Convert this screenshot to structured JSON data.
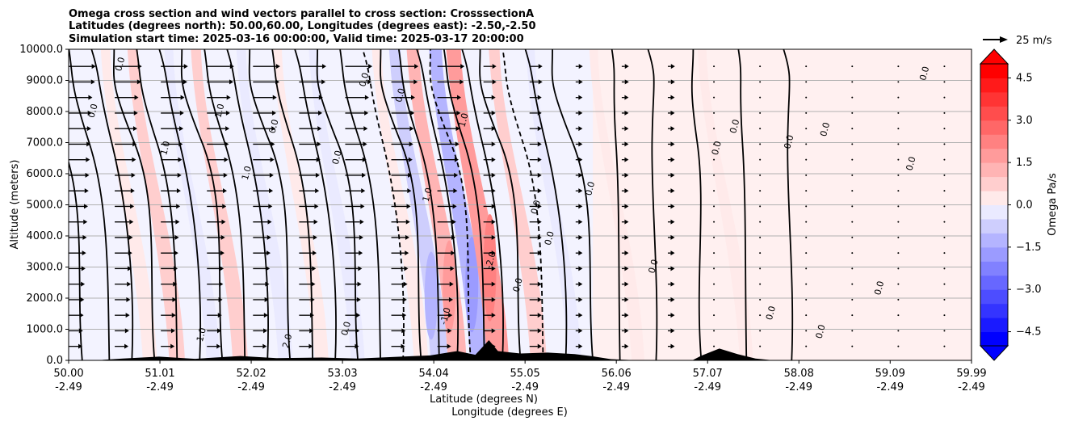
{
  "chart_data": {
    "type": "heatmap",
    "title_lines": [
      "Omega cross section and wind vectors parallel to cross section: CrosssectionA",
      "Latitudes (degrees north): 50.00,60.00, Longitudes (degrees east): -2.50,-2.50",
      "Simulation start time: 2025-03-16 00:00:00, Valid time: 2025-03-17 20:00:00"
    ],
    "ylabel": "Altitude (meters)",
    "xlabel_line1": "Latitude (degrees N)",
    "xlabel_line2": "Longitude (degrees E)",
    "ylim": [
      0,
      10000
    ],
    "xlim": [
      50.0,
      59.99
    ],
    "y_ticks": [
      "0.0",
      "1000.0",
      "2000.0",
      "3000.0",
      "4000.0",
      "5000.0",
      "6000.0",
      "7000.0",
      "8000.0",
      "9000.0",
      "10000.0"
    ],
    "y_tick_values": [
      0,
      1000,
      2000,
      3000,
      4000,
      5000,
      6000,
      7000,
      8000,
      9000,
      10000
    ],
    "x_ticks_lat": [
      "50.00",
      "51.01",
      "52.02",
      "53.03",
      "54.04",
      "55.05",
      "56.06",
      "57.07",
      "58.08",
      "59.09",
      "59.99"
    ],
    "x_ticks_lon": [
      "-2.49",
      "-2.49",
      "-2.49",
      "-2.49",
      "-2.49",
      "-2.49",
      "-2.49",
      "-2.49",
      "-2.49",
      "-2.49",
      "-2.49"
    ],
    "x_tick_values": [
      50.0,
      51.01,
      52.02,
      53.03,
      54.04,
      55.05,
      56.06,
      57.07,
      58.08,
      59.09,
      59.99
    ],
    "grid": "horizontal",
    "colorbar": {
      "label": "Omega Pa/s",
      "range": [
        -5,
        5
      ],
      "levels": [
        -5,
        -4.5,
        -4,
        -3.5,
        -3,
        -2.5,
        -2,
        -1.5,
        -1,
        -0.5,
        0,
        0.5,
        1,
        1.5,
        2,
        2.5,
        3,
        3.5,
        4,
        4.5,
        5
      ],
      "tick_labels": [
        "−4.5",
        "−3.0",
        "−1.5",
        "0.0",
        "1.5",
        "3.0",
        "4.5"
      ],
      "tick_values": [
        -4.5,
        -3.0,
        -1.5,
        0.0,
        1.5,
        3.0,
        4.5
      ],
      "colors": [
        "#0000ff",
        "#1a1aff",
        "#3434ff",
        "#4d4dff",
        "#6767ff",
        "#8181ff",
        "#9b9bff",
        "#b4b4ff",
        "#cecefd",
        "#eaeaff",
        "#ffeaea",
        "#ffcece",
        "#ffb4b4",
        "#ff9b9b",
        "#ff8181",
        "#ff6767",
        "#ff4d4d",
        "#ff3434",
        "#ff1a1a",
        "#ff0000"
      ],
      "extend": "both"
    },
    "quiver_key": "25 m/s",
    "contour_labels_shown": [
      "0.0",
      "1.0",
      "-1.0",
      "2.0",
      "-2.0"
    ],
    "omega_bands": [
      {
        "lat": 50.9,
        "value": 0.6
      },
      {
        "lat": 51.2,
        "value": 0.9
      },
      {
        "lat": 51.6,
        "value": -0.4
      },
      {
        "lat": 51.9,
        "value": 0.8
      },
      {
        "lat": 52.4,
        "value": -0.6
      },
      {
        "lat": 52.8,
        "value": 0.5
      },
      {
        "lat": 53.2,
        "value": -0.5
      },
      {
        "lat": 53.9,
        "value": 0.6
      },
      {
        "lat": 54.1,
        "value": -1.2
      },
      {
        "lat": 54.3,
        "value": 1.5
      },
      {
        "lat": 54.55,
        "value": -1.6
      },
      {
        "lat": 54.75,
        "value": 2.2
      },
      {
        "lat": 55.2,
        "value": 1.0
      },
      {
        "lat": 55.6,
        "value": -0.4
      },
      {
        "lat": 56.3,
        "value": 0.3
      },
      {
        "lat": 57.5,
        "value": 0.4
      }
    ]
  }
}
